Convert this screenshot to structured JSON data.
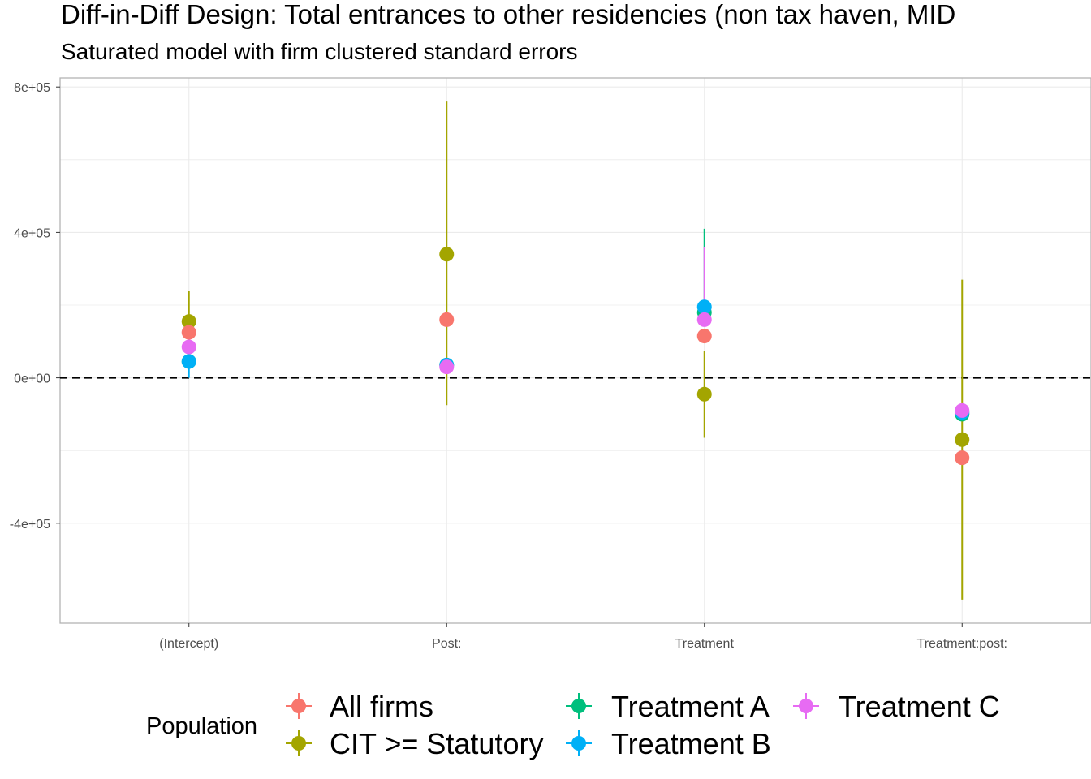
{
  "chart_data": {
    "type": "scatter",
    "title": "Diff-in-Diff Design: Total entrances to other residencies (non tax haven, MID",
    "subtitle": "Saturated model with firm clustered standard errors",
    "xlabel": "",
    "ylabel": "",
    "categories": [
      "(Intercept)",
      "Post:",
      "Treatment",
      "Treatment:post:"
    ],
    "ylim": [
      -675000,
      825000
    ],
    "yticks": [
      800000,
      400000,
      0,
      -400000
    ],
    "ytick_labels": [
      "8e+05",
      "4e+05",
      "0e+00",
      "-4e+05"
    ],
    "reference_line": 0,
    "grid": true,
    "legend": {
      "title": "Population",
      "placement": "bottom"
    },
    "series": [
      {
        "name": "All firms",
        "color": "#F8766D",
        "values": [
          125000,
          160000,
          115000,
          -220000
        ],
        "lower": [
          null,
          null,
          null,
          null
        ],
        "upper": [
          null,
          null,
          null,
          null
        ]
      },
      {
        "name": "CIT >= Statutory",
        "color": "#A3A500",
        "values": [
          155000,
          340000,
          -45000,
          -170000
        ],
        "lower": [
          75000,
          -75000,
          -165000,
          -610000
        ],
        "upper": [
          240000,
          760000,
          75000,
          270000
        ]
      },
      {
        "name": "Treatment A",
        "color": "#00BF7D",
        "values": [
          45000,
          35000,
          180000,
          -100000
        ],
        "lower": [
          null,
          null,
          null,
          null
        ],
        "upper": [
          null,
          null,
          410000,
          null
        ]
      },
      {
        "name": "Treatment B",
        "color": "#00B0F6",
        "values": [
          45000,
          35000,
          195000,
          -95000
        ],
        "lower": [
          0,
          null,
          null,
          null
        ],
        "upper": [
          null,
          null,
          null,
          null
        ]
      },
      {
        "name": "Treatment C",
        "color": "#E76BF3",
        "values": [
          85000,
          30000,
          160000,
          -90000
        ],
        "lower": [
          null,
          null,
          null,
          null
        ],
        "upper": [
          null,
          null,
          360000,
          null
        ]
      }
    ]
  }
}
